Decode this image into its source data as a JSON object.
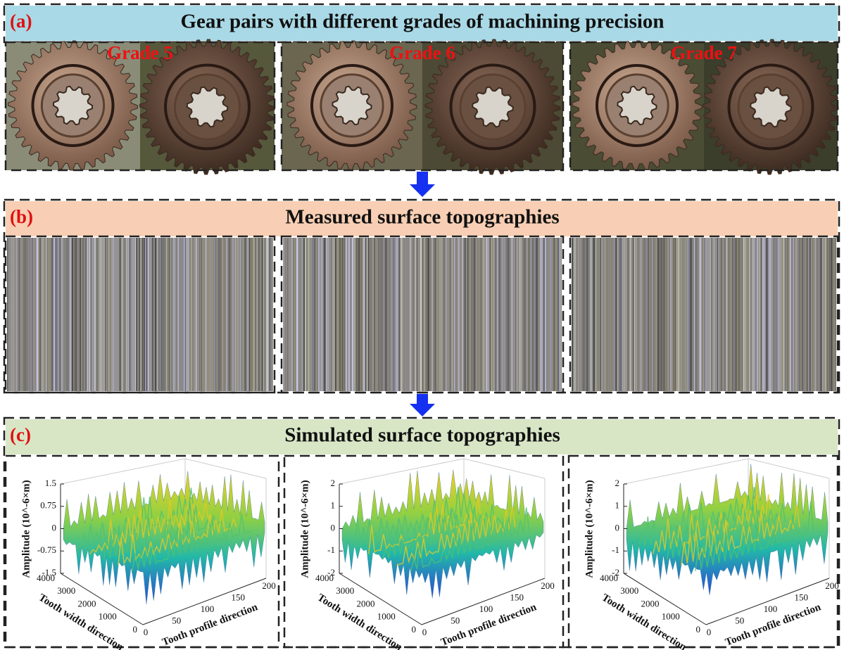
{
  "panels": [
    {
      "label": "(a)",
      "title": "Gear pairs with different grades of machining precision",
      "captions": [
        "Grade 5",
        "Grade 6",
        "Grade 7"
      ]
    },
    {
      "label": "(b)",
      "title": "Measured surface topographies"
    },
    {
      "label": "(c)",
      "title": "Simulated surface topographies",
      "plots": [
        {
          "z_label": "Amplitude (10^-6×m)",
          "z_ticks": [
            1.5,
            0.75,
            0,
            -0.75,
            -1.5
          ],
          "y_label": "Tooth width direction",
          "y_ticks": [
            4000,
            3000,
            2000,
            1000,
            0
          ],
          "x_label": "Tooth profile direction",
          "x_ticks": [
            0,
            50,
            100,
            150,
            200
          ]
        },
        {
          "z_label": "Amplitude (10^-6×m)",
          "z_ticks": [
            2,
            1,
            0,
            -1,
            -2
          ],
          "y_label": "Tooth width direction",
          "y_ticks": [
            4000,
            3000,
            2000,
            1000,
            0
          ],
          "x_label": "Tooth profile direction",
          "x_ticks": [
            0,
            50,
            100,
            150,
            200
          ]
        },
        {
          "z_label": "Amplitude (10^-6×m)",
          "z_ticks": [
            2,
            1,
            0,
            -1,
            -2
          ],
          "y_label": "Tooth width direction",
          "y_ticks": [
            4000,
            3000,
            2000,
            1000,
            0
          ],
          "x_label": "Tooth profile direction",
          "x_ticks": [
            0,
            50,
            100,
            150,
            200
          ]
        }
      ]
    }
  ]
}
